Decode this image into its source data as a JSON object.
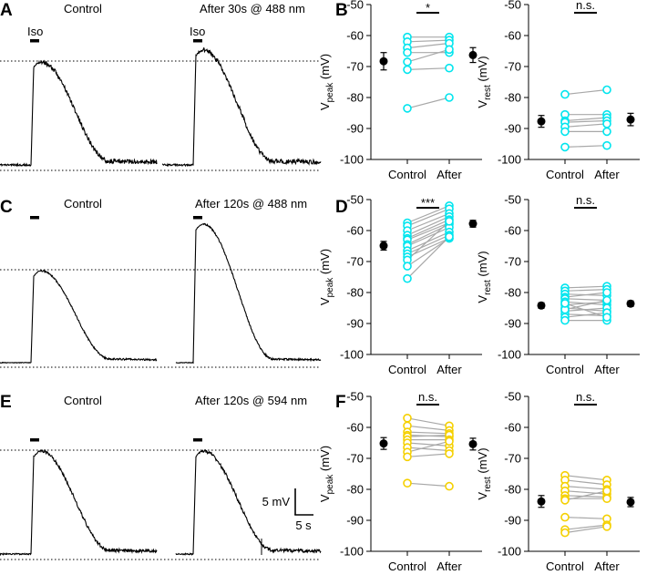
{
  "colors": {
    "trace": "#000000",
    "cyan": "#00e5ee",
    "yellow": "#f5d000",
    "pair_line": "#a8a8a8",
    "mean": "#000000"
  },
  "traces": [
    {
      "panel_letter": "A",
      "control_title": "Control",
      "after_title": "After 30s @ 488 nm",
      "iso_label_control": "Iso",
      "iso_label_after": "Iso",
      "control_peak_ratio": 0.0,
      "after_peak_ratio": 0.0,
      "noise": "high"
    },
    {
      "panel_letter": "C",
      "control_title": "Control",
      "after_title": "After 120s @ 488 nm",
      "iso_label_control": "",
      "iso_label_after": "",
      "control_peak_ratio": 0.0,
      "after_peak_ratio": 1.0,
      "noise": "low"
    },
    {
      "panel_letter": "E",
      "control_title": "Control",
      "after_title": "After 120s @ 594 nm",
      "iso_label_control": "",
      "iso_label_after": "",
      "control_peak_ratio": 0.0,
      "after_peak_ratio": 0.0,
      "noise": "medium"
    }
  ],
  "scalebar": {
    "voltage": "5 mV",
    "time": "5 s"
  },
  "chart_data": [
    {
      "type": "scatter",
      "panel_letter": "B",
      "ylabel_main": "V",
      "ylabel_sub": "peak",
      "ylabel_unit": " (mV)",
      "categories": [
        "Control",
        "After"
      ],
      "ylim": [
        -100,
        -50
      ],
      "yticks": [
        -50,
        -60,
        -70,
        -80,
        -90,
        -100
      ],
      "significance": "*",
      "color": "cyan",
      "pairs": [
        [
          -60.5,
          -60.5
        ],
        [
          -62,
          -61.5
        ],
        [
          -64,
          -62.5
        ],
        [
          -65.5,
          -65.5
        ],
        [
          -68.5,
          -64.5
        ],
        [
          -71,
          -70.5
        ],
        [
          -83.5,
          -80
        ]
      ],
      "mean": {
        "control": -68.3,
        "control_err": 2.8,
        "after": -66.3,
        "after_err": 2.4
      }
    },
    {
      "type": "scatter",
      "panel_letter": "",
      "ylabel_main": "V",
      "ylabel_sub": "rest",
      "ylabel_unit": " (mV)",
      "categories": [
        "Control",
        "After"
      ],
      "ylim": [
        -100,
        -50
      ],
      "yticks": [
        -50,
        -60,
        -70,
        -80,
        -90,
        -100
      ],
      "significance": "n.s.",
      "color": "cyan",
      "pairs": [
        [
          -79,
          -77.5
        ],
        [
          -85.5,
          -85.5
        ],
        [
          -87.5,
          -86.5
        ],
        [
          -88,
          -87.5
        ],
        [
          -89.5,
          -88.5
        ],
        [
          -91,
          -91
        ],
        [
          -96,
          -95.5
        ]
      ],
      "mean": {
        "control": -87.7,
        "control_err": 1.9,
        "after": -87.1,
        "after_err": 2.0
      }
    },
    {
      "type": "scatter",
      "panel_letter": "D",
      "ylabel_main": "V",
      "ylabel_sub": "peak",
      "ylabel_unit": " (mV)",
      "categories": [
        "Control",
        "After"
      ],
      "ylim": [
        -100,
        -50
      ],
      "yticks": [
        -50,
        -60,
        -70,
        -80,
        -90,
        -100
      ],
      "significance": "***",
      "color": "cyan",
      "pairs": [
        [
          -57.5,
          -52
        ],
        [
          -58.5,
          -53
        ],
        [
          -60,
          -54.5
        ],
        [
          -61.5,
          -55.5
        ],
        [
          -62.5,
          -56.5
        ],
        [
          -63,
          -57.5
        ],
        [
          -64.5,
          -58
        ],
        [
          -65,
          -59
        ],
        [
          -66.5,
          -60.5
        ],
        [
          -67.5,
          -61.5
        ],
        [
          -68.5,
          -62.5
        ],
        [
          -69.5,
          -57
        ],
        [
          -71.5,
          -62.5
        ],
        [
          -75.5,
          -62
        ]
      ],
      "mean": {
        "control": -64.9,
        "control_err": 1.4,
        "after": -57.8,
        "after_err": 1.1
      }
    },
    {
      "type": "scatter",
      "panel_letter": "",
      "ylabel_main": "V",
      "ylabel_sub": "rest",
      "ylabel_unit": " (mV)",
      "categories": [
        "Control",
        "After"
      ],
      "ylim": [
        -100,
        -50
      ],
      "yticks": [
        -50,
        -60,
        -70,
        -80,
        -90,
        -100
      ],
      "significance": "n.s.",
      "color": "cyan",
      "pairs": [
        [
          -78.5,
          -78
        ],
        [
          -79.5,
          -79
        ],
        [
          -80.5,
          -81
        ],
        [
          -81.5,
          -80
        ],
        [
          -82,
          -82.5
        ],
        [
          -83,
          -84
        ],
        [
          -84,
          -83
        ],
        [
          -85,
          -86
        ],
        [
          -86,
          -85
        ],
        [
          -87,
          -87.5
        ],
        [
          -88,
          -86.5
        ],
        [
          -89,
          -89
        ],
        [
          -85.5,
          -82.5
        ],
        [
          -83.5,
          -88
        ]
      ],
      "mean": {
        "control": -84.2,
        "control_err": 0.9,
        "after": -83.6,
        "after_err": 0.9
      }
    },
    {
      "type": "scatter",
      "panel_letter": "F",
      "ylabel_main": "V",
      "ylabel_sub": "peak",
      "ylabel_unit": " (mV)",
      "categories": [
        "Control",
        "After"
      ],
      "ylim": [
        -100,
        -50
      ],
      "yticks": [
        -50,
        -60,
        -70,
        -80,
        -90,
        -100
      ],
      "significance": "n.s.",
      "color": "yellow",
      "pairs": [
        [
          -57,
          -59.5
        ],
        [
          -59.5,
          -61
        ],
        [
          -61.5,
          -62
        ],
        [
          -62.5,
          -63
        ],
        [
          -63,
          -62.5
        ],
        [
          -64,
          -64
        ],
        [
          -65,
          -66
        ],
        [
          -66.5,
          -67.5
        ],
        [
          -68,
          -64.5
        ],
        [
          -69.5,
          -68.5
        ],
        [
          -78,
          -79
        ]
      ],
      "mean": {
        "control": -65.2,
        "control_err": 1.9,
        "after": -65.4,
        "after_err": 1.9
      }
    },
    {
      "type": "scatter",
      "panel_letter": "",
      "ylabel_main": "V",
      "ylabel_sub": "rest",
      "ylabel_unit": " (mV)",
      "categories": [
        "Control",
        "After"
      ],
      "ylim": [
        -100,
        -50
      ],
      "yticks": [
        -50,
        -60,
        -70,
        -80,
        -90,
        -100
      ],
      "significance": "n.s.",
      "color": "yellow",
      "pairs": [
        [
          -75.5,
          -77
        ],
        [
          -77,
          -78.5
        ],
        [
          -79,
          -80
        ],
        [
          -80.5,
          -81.5
        ],
        [
          -82,
          -82.5
        ],
        [
          -83,
          -83
        ],
        [
          -83.5,
          -80.5
        ],
        [
          -89,
          -89.5
        ],
        [
          -93,
          -91.5
        ],
        [
          -94,
          -92
        ]
      ],
      "mean": {
        "control": -83.9,
        "control_err": 1.9,
        "after": -84.1,
        "after_err": 1.5
      }
    }
  ]
}
